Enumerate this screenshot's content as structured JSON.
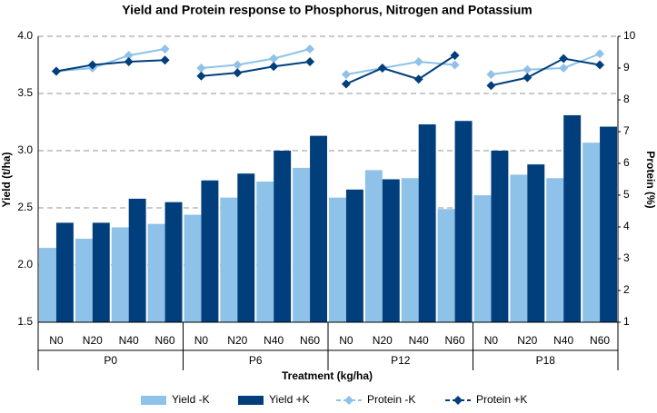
{
  "chart_data": {
    "type": "bar_line",
    "title": "Yield and Protein response to Phosphorus, Nitrogen and Potassium",
    "x_label": "Treatment (kg/ha)",
    "y_label": "Yield (t/ha)",
    "y2_label": "Protein (%)",
    "categories": [
      "N0",
      "N20",
      "N40",
      "N60",
      "N0",
      "N20",
      "N40",
      "N60",
      "N0",
      "N20",
      "N40",
      "N60",
      "N0",
      "N20",
      "N40",
      "N60"
    ],
    "groups": [
      "P0",
      "P6",
      "P12",
      "P18"
    ],
    "series": [
      {
        "name": "Yield -K",
        "type": "bar",
        "color": "#8fc2e9",
        "values": [
          2.15,
          2.23,
          2.33,
          2.36,
          2.44,
          2.59,
          2.73,
          2.85,
          2.59,
          2.83,
          2.76,
          2.49,
          2.61,
          2.79,
          2.76,
          3.07
        ]
      },
      {
        "name": "Yield +K",
        "type": "bar",
        "color": "#013f7c",
        "values": [
          2.37,
          2.37,
          2.58,
          2.55,
          2.74,
          2.8,
          3.0,
          3.13,
          2.66,
          2.75,
          3.23,
          3.26,
          3.0,
          2.88,
          3.31,
          3.21
        ]
      },
      {
        "name": "Protein -K",
        "type": "line",
        "axis": "y2",
        "color": "#8fc2e9",
        "values": [
          8.9,
          9.0,
          9.4,
          9.6,
          9.0,
          9.1,
          9.3,
          9.6,
          8.8,
          9.0,
          9.2,
          9.1,
          8.8,
          8.95,
          9.0,
          9.45
        ]
      },
      {
        "name": "Protein +K",
        "type": "line",
        "axis": "y2",
        "color": "#013f7c",
        "values": [
          8.9,
          9.1,
          9.2,
          9.25,
          8.75,
          8.85,
          9.05,
          9.2,
          8.5,
          9.0,
          8.65,
          9.4,
          8.45,
          8.7,
          9.3,
          9.1
        ]
      }
    ],
    "ylim": [
      1.5,
      4.0
    ],
    "yticks": [
      1.5,
      {
        "value": 2,
        "label": "2.0"
      },
      2.5,
      {
        "value": 3,
        "label": "3.0"
      },
      3.5,
      {
        "value": 4,
        "label": "4.0"
      }
    ],
    "y2lim": [
      1,
      10
    ],
    "y2ticks": [
      1,
      2,
      3,
      4,
      5,
      6,
      7,
      8,
      9,
      10
    ],
    "grid": true,
    "legend": "bottom"
  }
}
